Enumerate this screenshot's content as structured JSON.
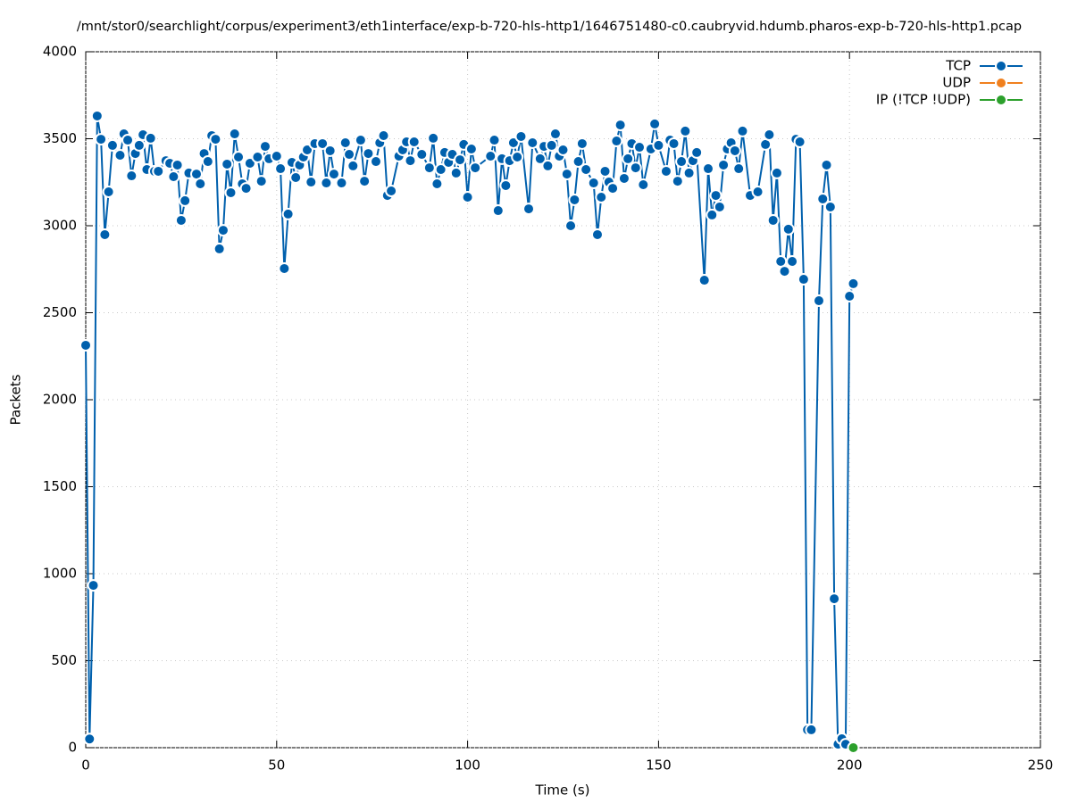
{
  "chart_data": {
    "type": "line",
    "title": "/mnt/stor0/searchlight/corpus/experiment3/eth1interface/exp-b-720-hls-http1/1646751480-c0.caubryvid.hdumb.pharos-exp-b-720-hls-http1.pcap",
    "x_label": "Time (s)",
    "y_label": "Packets",
    "xlim": [
      0,
      250
    ],
    "ylim": [
      0,
      4000
    ],
    "xticks": [
      0,
      50,
      100,
      150,
      200,
      250
    ],
    "yticks": [
      0,
      500,
      1000,
      1500,
      2000,
      2500,
      3000,
      3500,
      4000
    ],
    "grid": true,
    "legend": "top-right",
    "series": [
      {
        "name": "TCP",
        "color": "#0060ad",
        "x": [
          0,
          1,
          2,
          3,
          4,
          5,
          6,
          7,
          9,
          10,
          11,
          12,
          13,
          14,
          15,
          16,
          17,
          18,
          19,
          21,
          22,
          23,
          24,
          25,
          26,
          27,
          29,
          30,
          31,
          32,
          33,
          34,
          35,
          36,
          37,
          38,
          39,
          40,
          41,
          42,
          43,
          45,
          46,
          47,
          48,
          50,
          51,
          52,
          53,
          54,
          55,
          56,
          57,
          58,
          59,
          60,
          62,
          63,
          64,
          65,
          67,
          68,
          69,
          70,
          72,
          73,
          74,
          76,
          77,
          78,
          79,
          80,
          82,
          83,
          84,
          85,
          86,
          88,
          90,
          91,
          92,
          93,
          94,
          95,
          96,
          97,
          98,
          99,
          100,
          101,
          102,
          106,
          107,
          108,
          109,
          110,
          111,
          112,
          113,
          114,
          116,
          117,
          119,
          120,
          121,
          122,
          123,
          124,
          125,
          126,
          127,
          128,
          129,
          130,
          131,
          133,
          134,
          135,
          136,
          137,
          138,
          139,
          140,
          141,
          142,
          143,
          144,
          145,
          146,
          148,
          149,
          150,
          152,
          153,
          154,
          155,
          156,
          157,
          158,
          159,
          160,
          162,
          163,
          164,
          165,
          166,
          167,
          168,
          169,
          170,
          171,
          172,
          174,
          176,
          178,
          179,
          180,
          181,
          182,
          183,
          184,
          185,
          186,
          187,
          188,
          189,
          190,
          192,
          193,
          194,
          195,
          196,
          197,
          198,
          199,
          200,
          201
        ],
        "values": [
          2313,
          50,
          933,
          3631,
          3497,
          2949,
          3195,
          3462,
          3405,
          3528,
          3492,
          3287,
          3415,
          3462,
          3523,
          3323,
          3503,
          3313,
          3313,
          3374,
          3359,
          3282,
          3349,
          3031,
          3144,
          3303,
          3297,
          3241,
          3415,
          3369,
          3518,
          3497,
          2867,
          2974,
          3354,
          3190,
          3528,
          3395,
          3241,
          3215,
          3359,
          3395,
          3256,
          3456,
          3385,
          3400,
          3328,
          2754,
          3067,
          3364,
          3277,
          3349,
          3395,
          3436,
          3251,
          3472,
          3472,
          3246,
          3431,
          3297,
          3246,
          3477,
          3410,
          3344,
          3492,
          3256,
          3415,
          3369,
          3477,
          3518,
          3174,
          3200,
          3400,
          3436,
          3482,
          3374,
          3482,
          3410,
          3333,
          3503,
          3241,
          3323,
          3421,
          3364,
          3410,
          3303,
          3379,
          3467,
          3164,
          3441,
          3333,
          3400,
          3492,
          3087,
          3385,
          3231,
          3374,
          3477,
          3395,
          3513,
          3097,
          3477,
          3385,
          3456,
          3344,
          3462,
          3528,
          3400,
          3436,
          3297,
          3000,
          3149,
          3369,
          3472,
          3323,
          3246,
          2949,
          3164,
          3313,
          3251,
          3215,
          3487,
          3579,
          3272,
          3385,
          3472,
          3333,
          3451,
          3236,
          3441,
          3585,
          3462,
          3313,
          3492,
          3472,
          3256,
          3369,
          3544,
          3303,
          3374,
          3421,
          2687,
          3328,
          3062,
          3174,
          3108,
          3349,
          3441,
          3477,
          3431,
          3328,
          3544,
          3174,
          3195,
          3467,
          3523,
          3031,
          3303,
          2795,
          2738,
          2980,
          2795,
          3497,
          3482,
          2692,
          103,
          103,
          2569,
          3154,
          3349,
          3108,
          856,
          20,
          51,
          20,
          2595,
          2667
        ]
      },
      {
        "name": "UDP",
        "color": "#f0801e",
        "x": [],
        "values": []
      },
      {
        "name": "IP (!TCP  !UDP)",
        "color": "#2ca02c",
        "x": [
          201
        ],
        "values": [
          0
        ]
      }
    ]
  }
}
